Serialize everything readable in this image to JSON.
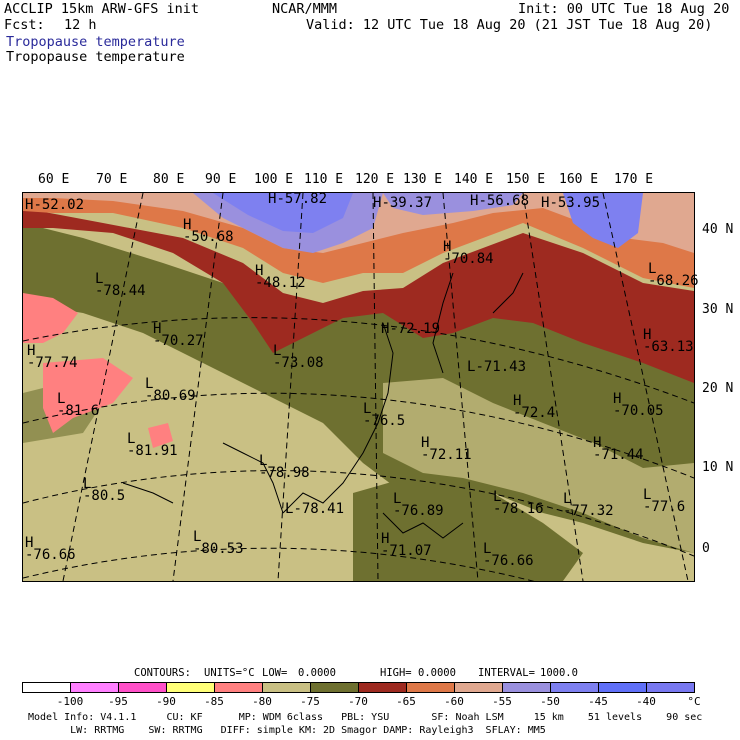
{
  "header": {
    "model": "ACCLIP 15km ARW-GFS init",
    "org": "NCAR/MMM",
    "init": "Init: 00 UTC Tue 18 Aug 20",
    "fcst_label": "Fcst:",
    "fcst_value": "12 h",
    "valid": "Valid: 12 UTC Tue 18 Aug 20 (21 JST Tue 18 Aug 20)",
    "field_title_1": "Tropopause temperature",
    "field_title_2": "Tropopause temperature"
  },
  "map": {
    "lon_labels": [
      "60 E",
      "70 E",
      "80 E",
      "90 E",
      "100 E",
      "110 E",
      "120 E",
      "130 E",
      "140 E",
      "150 E",
      "160 E",
      "170 E"
    ],
    "lat_labels": [
      "40 N",
      "30 N",
      "20 N",
      "10 N",
      "0"
    ],
    "highs_lows": [
      {
        "type": "H",
        "value": "-52.02"
      },
      {
        "type": "H",
        "value": "-50.68"
      },
      {
        "type": "H",
        "value": "-57.82"
      },
      {
        "type": "H",
        "value": "-39.37"
      },
      {
        "type": "H",
        "value": "-56.68"
      },
      {
        "type": "H",
        "value": "-53.95"
      },
      {
        "type": "H",
        "value": "-48.12"
      },
      {
        "type": "L",
        "value": "-78.44"
      },
      {
        "type": "H",
        "value": "-70.84"
      },
      {
        "type": "L",
        "value": "-68.26"
      },
      {
        "type": "H",
        "value": "-70.27"
      },
      {
        "type": "H",
        "value": "-72.19"
      },
      {
        "type": "H",
        "value": "-77.74"
      },
      {
        "type": "L",
        "value": "-73.08"
      },
      {
        "type": "L",
        "value": "-71.43"
      },
      {
        "type": "H",
        "value": "-63.13"
      },
      {
        "type": "L",
        "value": "-80.69"
      },
      {
        "type": "L",
        "value": "-81.6"
      },
      {
        "type": "L",
        "value": "-76.5"
      },
      {
        "type": "H",
        "value": "-72.4"
      },
      {
        "type": "H",
        "value": "-70.05"
      },
      {
        "type": "L",
        "value": "-81.91"
      },
      {
        "type": "H",
        "value": "-72.11"
      },
      {
        "type": "H",
        "value": "-71.44"
      },
      {
        "type": "L",
        "value": "-78.98"
      },
      {
        "type": "L",
        "value": "-80.5"
      },
      {
        "type": "L",
        "value": "-78.41"
      },
      {
        "type": "L",
        "value": "-76.89"
      },
      {
        "type": "L",
        "value": "-78.16"
      },
      {
        "type": "L",
        "value": "-77.32"
      },
      {
        "type": "L",
        "value": "-77.6"
      },
      {
        "type": "L",
        "value": "-80.53"
      },
      {
        "type": "H",
        "value": "-71.07"
      },
      {
        "type": "H",
        "value": "-76.66"
      },
      {
        "type": "L",
        "value": "-76.66"
      }
    ]
  },
  "contours": {
    "text_contours": "CONTOURS:",
    "text_units": "UNITS=°C",
    "text_low": "LOW=",
    "low_value": "0.0000",
    "text_high": "HIGH=",
    "high_value": "0.0000",
    "text_interval": "INTERVAL=",
    "interval_value": "1000.0"
  },
  "colorbar": {
    "colors": [
      "#ffffff",
      "#ff80ff",
      "#ff50c8",
      "#ffff78",
      "#ff8080",
      "#c9c084",
      "#6e7030",
      "#9e2a20",
      "#de7848",
      "#e0a890",
      "#9a90de",
      "#7e80f0",
      "#6070f8",
      "#7878f0"
    ],
    "ticks": [
      "-100",
      "-95",
      "-90",
      "-85",
      "-80",
      "-75",
      "-70",
      "-65",
      "-60",
      "-55",
      "-50",
      "-45",
      "-40",
      "°C"
    ]
  },
  "footer": {
    "line1": "Model Info: V4.1.1     CU: KF      MP: WDM 6class   PBL: YSU       SF: Noah LSM     15 km    51 levels    90 sec",
    "line2": "       LW: RRTMG    SW: RRTMG   DIFF: simple KM: 2D Smagor DAMP: Rayleigh3  SFLAY: MM5"
  }
}
